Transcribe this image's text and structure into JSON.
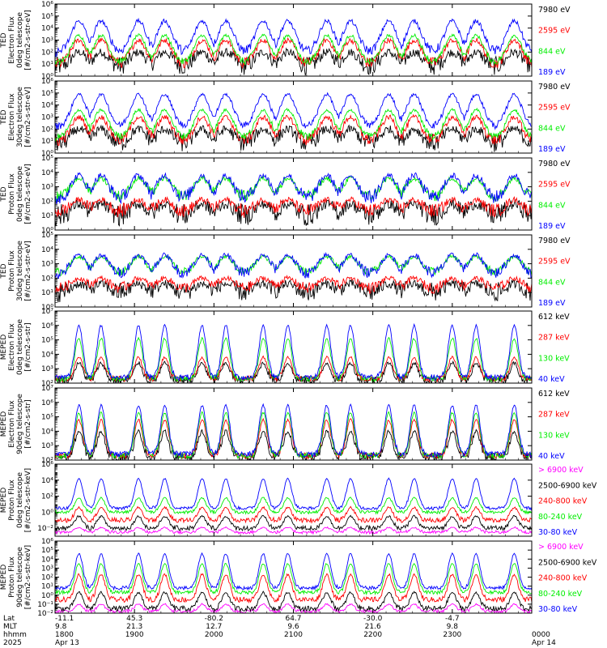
{
  "colors": {
    "black": "#000000",
    "red": "#ff0000",
    "green": "#00ee00",
    "blue": "#0000ff",
    "magenta": "#ff00ff"
  },
  "chart_data": [
    {
      "type": "line",
      "instrument": "TED",
      "ylabel": [
        "TED",
        "Electron Flux",
        "0deg telescope",
        "[#/cm2-s-str-eV]"
      ],
      "ylog": true,
      "ylim_exp": [
        0,
        6
      ],
      "tick_labels": [
        "10⁰",
        "10¹",
        "10²",
        "10³",
        "10⁴",
        "10⁵",
        "10⁶"
      ],
      "series": [
        {
          "name": "7980 eV",
          "color": "black",
          "base": 0.8,
          "amp": 1.2,
          "noise": 0.8
        },
        {
          "name": "2595 eV",
          "color": "red",
          "base": 1.0,
          "amp": 2.0,
          "noise": 0.5
        },
        {
          "name": "844 eV",
          "color": "green",
          "base": 1.1,
          "amp": 2.3,
          "noise": 0.3
        },
        {
          "name": "189 eV",
          "color": "blue",
          "base": 2.0,
          "amp": 2.6,
          "noise": 0.4
        }
      ]
    },
    {
      "type": "line",
      "instrument": "TED",
      "ylabel": [
        "TED",
        "Electron Flux",
        "30deg telescope",
        "[#/cm2-s-str-eV]"
      ],
      "ylog": true,
      "ylim_exp": [
        0,
        6
      ],
      "tick_labels": [
        "10⁰",
        "10¹",
        "10²",
        "10³",
        "10⁴",
        "10⁵",
        "10⁶"
      ],
      "series": [
        {
          "name": "7980 eV",
          "color": "black",
          "base": 0.8,
          "amp": 1.2,
          "noise": 0.8
        },
        {
          "name": "2595 eV",
          "color": "red",
          "base": 1.0,
          "amp": 2.0,
          "noise": 0.5
        },
        {
          "name": "844 eV",
          "color": "green",
          "base": 1.3,
          "amp": 2.3,
          "noise": 0.3
        },
        {
          "name": "189 eV",
          "color": "blue",
          "base": 2.2,
          "amp": 2.7,
          "noise": 0.3
        }
      ]
    },
    {
      "type": "line",
      "instrument": "TED",
      "ylabel": [
        "TED",
        "Proton Flux",
        "0deg telescope",
        "[#/cm2-s-str-eV]"
      ],
      "ylog": true,
      "ylim_exp": [
        0,
        5
      ],
      "tick_labels": [
        "10⁰",
        "10¹",
        "10²",
        "10³",
        "10⁴",
        "10⁵"
      ],
      "series": [
        {
          "name": "7980 eV",
          "color": "black",
          "base": 1.0,
          "amp": 0.8,
          "noise": 0.8
        },
        {
          "name": "2595 eV",
          "color": "red",
          "base": 1.3,
          "amp": 0.8,
          "noise": 0.5
        },
        {
          "name": "844 eV",
          "color": "green",
          "base": 2.3,
          "amp": 1.3,
          "noise": 0.4
        },
        {
          "name": "189 eV",
          "color": "blue",
          "base": 2.2,
          "amp": 1.6,
          "noise": 0.5
        }
      ]
    },
    {
      "type": "line",
      "instrument": "TED",
      "ylabel": [
        "TED",
        "Proton Flux",
        "30deg telescope",
        "[#/cm2-s-str-eV]"
      ],
      "ylog": true,
      "ylim_exp": [
        0,
        5
      ],
      "tick_labels": [
        "10⁰",
        "10¹",
        "10²",
        "10³",
        "10⁴",
        "10⁵"
      ],
      "series": [
        {
          "name": "7980 eV",
          "color": "black",
          "base": 1.0,
          "amp": 0.6,
          "noise": 0.7
        },
        {
          "name": "2595 eV",
          "color": "red",
          "base": 1.3,
          "amp": 0.7,
          "noise": 0.4
        },
        {
          "name": "844 eV",
          "color": "green",
          "base": 2.4,
          "amp": 1.1,
          "noise": 0.3
        },
        {
          "name": "189 eV",
          "color": "blue",
          "base": 2.3,
          "amp": 1.3,
          "noise": 0.4
        }
      ]
    },
    {
      "type": "line",
      "instrument": "MEPED",
      "ylabel": [
        "MEPED",
        "Electron Flux",
        "0deg telescope",
        "[#/cm2-s-str]"
      ],
      "ylog": true,
      "ylim_exp": [
        2,
        7
      ],
      "tick_labels": [
        "10²",
        "10³",
        "10⁴",
        "10⁵",
        "10⁶",
        "10⁷"
      ],
      "series": [
        {
          "name": "612 keV",
          "color": "black",
          "base": 2.2,
          "amp": 1.2,
          "noise": 0.3
        },
        {
          "name": "287 keV",
          "color": "red",
          "base": 2.3,
          "amp": 1.5,
          "noise": 0.2
        },
        {
          "name": "130 keV",
          "color": "green",
          "base": 2.3,
          "amp": 2.8,
          "noise": 0.2
        },
        {
          "name": "40 keV",
          "color": "blue",
          "base": 2.4,
          "amp": 3.6,
          "noise": 0.2
        }
      ]
    },
    {
      "type": "line",
      "instrument": "MEPED",
      "ylabel": [
        "MEPED",
        "Electron Flux",
        "90deg telescope",
        "[#/cm2-s-str]"
      ],
      "ylog": true,
      "ylim_exp": [
        2,
        7
      ],
      "tick_labels": [
        "10²",
        "10³",
        "10⁴",
        "10⁵",
        "10⁶",
        "10⁷"
      ],
      "series": [
        {
          "name": "612 keV",
          "color": "black",
          "base": 2.2,
          "amp": 1.8,
          "noise": 0.3
        },
        {
          "name": "287 keV",
          "color": "red",
          "base": 2.3,
          "amp": 2.5,
          "noise": 0.2
        },
        {
          "name": "130 keV",
          "color": "green",
          "base": 2.3,
          "amp": 3.0,
          "noise": 0.2
        },
        {
          "name": "40 keV",
          "color": "blue",
          "base": 2.4,
          "amp": 3.4,
          "noise": 0.2
        }
      ]
    },
    {
      "type": "line",
      "instrument": "MEPED",
      "ylabel": [
        "MEPED",
        "Proton Flux",
        "0deg telescope",
        "[#/cm2-s-str-keV]"
      ],
      "ylog": true,
      "ylim_exp": [
        -3,
        6
      ],
      "tick_labels": [
        "10⁻²",
        "10⁰",
        "10²",
        "10⁴",
        "10⁶"
      ],
      "tick_exps": [
        -2,
        0,
        2,
        4,
        6
      ],
      "series": [
        {
          "name": "> 6900 keV",
          "color": "magenta",
          "base": -2.5,
          "amp": 0.6,
          "noise": 0.2
        },
        {
          "name": "2500-6900 keV",
          "color": "black",
          "base": -2.0,
          "amp": 1.5,
          "noise": 0.3
        },
        {
          "name": "240-800 keV",
          "color": "red",
          "base": -1.0,
          "amp": 1.6,
          "noise": 0.3
        },
        {
          "name": "80-240 keV",
          "color": "green",
          "base": 0.0,
          "amp": 1.8,
          "noise": 0.2
        },
        {
          "name": "30-80 keV",
          "color": "blue",
          "base": 0.5,
          "amp": 3.7,
          "noise": 0.2
        }
      ]
    },
    {
      "type": "line",
      "instrument": "MEPED",
      "ylabel": [
        "MEPED",
        "Proton Flux",
        "90deg telescope",
        "[#/cm2-s-str-keV]"
      ],
      "ylog": true,
      "ylim_exp": [
        -2,
        6
      ],
      "tick_labels": [
        "10⁻²",
        "10⁻¹",
        "10⁰",
        "10¹",
        "10²",
        "10³",
        "10⁴",
        "10⁵",
        "10⁶"
      ],
      "series": [
        {
          "name": "> 6900 keV",
          "color": "magenta",
          "base": -1.8,
          "amp": 0.8,
          "noise": 0.2
        },
        {
          "name": "2500-6900 keV",
          "color": "black",
          "base": -1.5,
          "amp": 1.8,
          "noise": 0.3
        },
        {
          "name": "240-800 keV",
          "color": "red",
          "base": -0.5,
          "amp": 2.8,
          "noise": 0.3
        },
        {
          "name": "80-240 keV",
          "color": "green",
          "base": 0.3,
          "amp": 3.2,
          "noise": 0.2
        },
        {
          "name": "30-80 keV",
          "color": "blue",
          "base": 0.8,
          "amp": 3.8,
          "noise": 0.2
        }
      ]
    }
  ],
  "time_axis": {
    "row_labels": [
      "Lat",
      "MLT",
      "hhmm",
      "2025"
    ],
    "xlim_hours": [
      18.0,
      24.0
    ],
    "ticks": [
      {
        "hour": 18.0,
        "lat": "-11.1",
        "mlt": "9.8",
        "hhmm": "1800",
        "date": "Apr 13"
      },
      {
        "hour": 19.0,
        "lat": "45.3",
        "mlt": "21.3",
        "hhmm": "1900",
        "date": ""
      },
      {
        "hour": 20.0,
        "lat": "-80.2",
        "mlt": "12.7",
        "hhmm": "2000",
        "date": ""
      },
      {
        "hour": 21.0,
        "lat": "64.7",
        "mlt": "9.6",
        "hhmm": "2100",
        "date": ""
      },
      {
        "hour": 22.0,
        "lat": "-30.0",
        "mlt": "21.6",
        "hhmm": "2200",
        "date": ""
      },
      {
        "hour": 23.0,
        "lat": "-4.7",
        "mlt": "9.8",
        "hhmm": "2300",
        "date": ""
      },
      {
        "hour": 24.0,
        "lat": "",
        "mlt": "",
        "hhmm": "0000",
        "date": "Apr 14"
      }
    ],
    "pass_centers_hours": [
      18.3,
      18.58,
      19.05,
      19.38,
      19.85,
      20.15,
      20.62,
      20.93,
      21.42,
      21.72,
      22.2,
      22.52,
      23.0,
      23.3,
      23.78
    ]
  }
}
